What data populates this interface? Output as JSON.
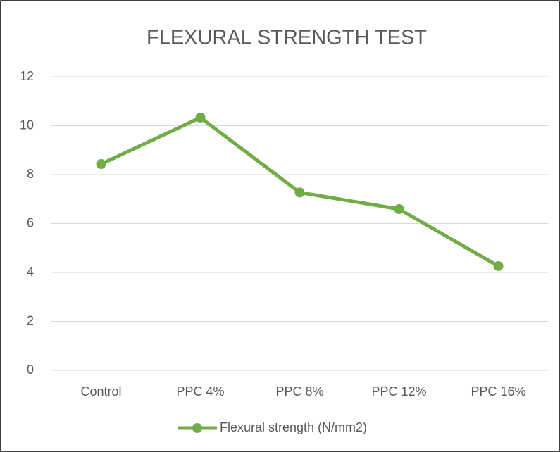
{
  "chart_data": {
    "type": "line",
    "title": "FLEXURAL STRENGTH TEST",
    "categories": [
      "Control",
      "PPC 4%",
      "PPC 8%",
      "PPC 12%",
      "PPC 16%"
    ],
    "series": [
      {
        "name": "Flexural strength (N/mm2)",
        "color": "#70ad47",
        "values": [
          8.43,
          10.33,
          7.27,
          6.59,
          4.26
        ]
      }
    ],
    "ylim": [
      0,
      12
    ],
    "yticks": [
      0,
      2,
      4,
      6,
      8,
      10,
      12
    ],
    "grid": true,
    "legend": "bottom"
  }
}
